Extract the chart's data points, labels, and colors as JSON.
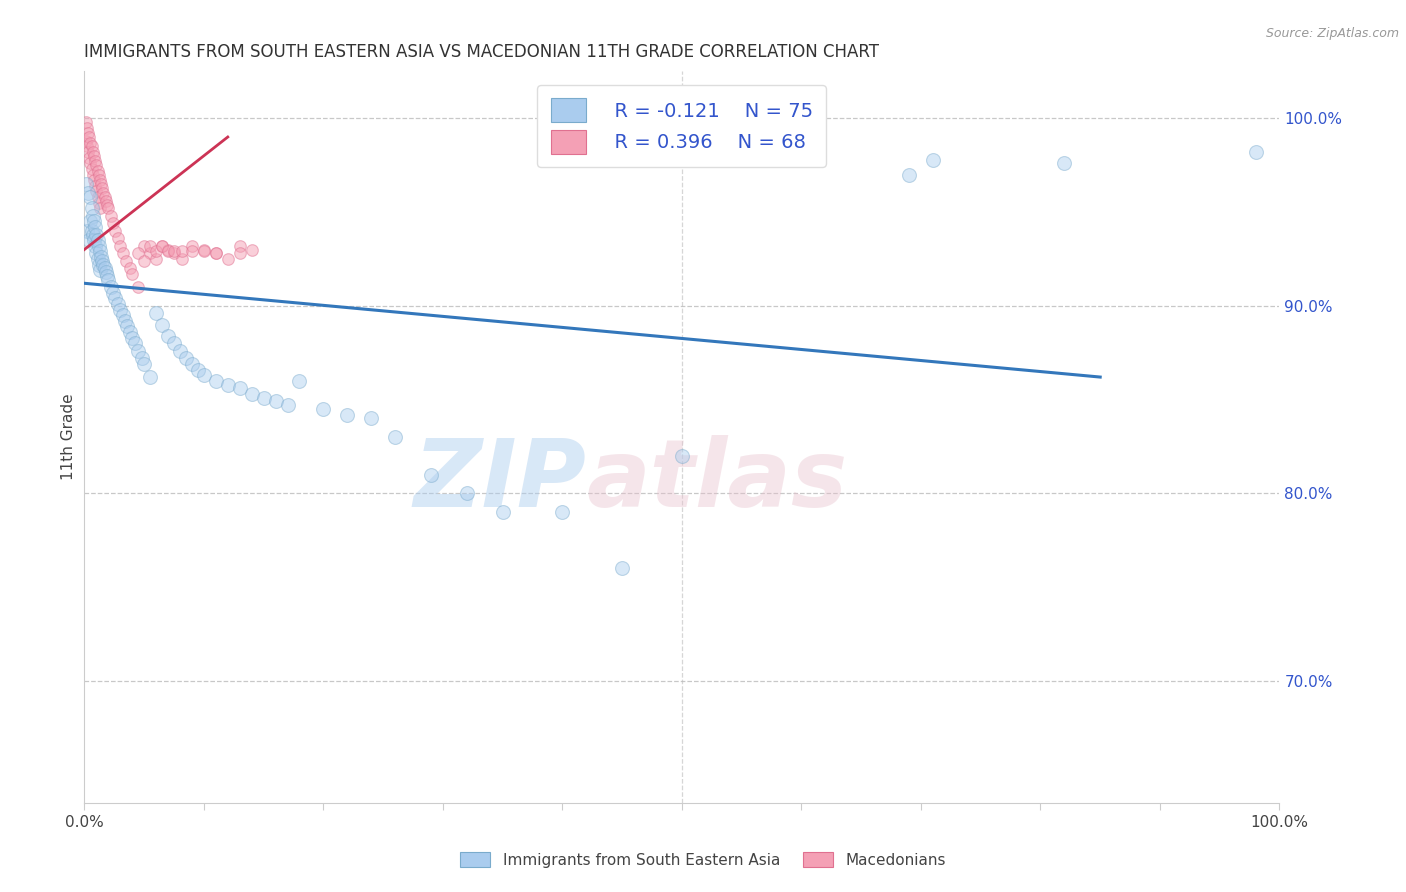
{
  "title": "IMMIGRANTS FROM SOUTH EASTERN ASIA VS MACEDONIAN 11TH GRADE CORRELATION CHART",
  "source": "Source: ZipAtlas.com",
  "ylabel": "11th Grade",
  "xmin": 0.0,
  "xmax": 1.0,
  "ymin": 0.635,
  "ymax": 1.025,
  "right_yticks": [
    0.7,
    0.8,
    0.9,
    1.0
  ],
  "right_ytick_labels": [
    "70.0%",
    "80.0%",
    "90.0%",
    "100.0%"
  ],
  "legend_r1": "R = -0.121",
  "legend_n1": "N = 75",
  "legend_r2": "R = 0.396",
  "legend_n2": "N = 68",
  "blue_color": "#aaccee",
  "blue_edge_color": "#7aabcc",
  "pink_color": "#f4a0b5",
  "pink_edge_color": "#e07090",
  "blue_line_color": "#3377bb",
  "pink_line_color": "#cc3355",
  "grid_color": "#bbbbbb",
  "title_color": "#333333",
  "right_axis_color": "#3355cc",
  "source_color": "#999999",
  "blue_scatter_x": [
    0.001,
    0.002,
    0.003,
    0.004,
    0.005,
    0.005,
    0.006,
    0.006,
    0.007,
    0.007,
    0.008,
    0.008,
    0.009,
    0.009,
    0.01,
    0.01,
    0.011,
    0.011,
    0.012,
    0.012,
    0.013,
    0.013,
    0.014,
    0.015,
    0.016,
    0.017,
    0.018,
    0.019,
    0.02,
    0.022,
    0.024,
    0.026,
    0.028,
    0.03,
    0.032,
    0.034,
    0.036,
    0.038,
    0.04,
    0.042,
    0.045,
    0.048,
    0.05,
    0.055,
    0.06,
    0.065,
    0.07,
    0.075,
    0.08,
    0.085,
    0.09,
    0.095,
    0.1,
    0.11,
    0.12,
    0.13,
    0.14,
    0.15,
    0.16,
    0.17,
    0.18,
    0.2,
    0.22,
    0.24,
    0.26,
    0.29,
    0.32,
    0.35,
    0.4,
    0.45,
    0.5,
    0.69,
    0.71,
    0.82,
    0.98
  ],
  "blue_scatter_y": [
    0.965,
    0.94,
    0.96,
    0.935,
    0.958,
    0.945,
    0.952,
    0.94,
    0.948,
    0.938,
    0.945,
    0.935,
    0.942,
    0.932,
    0.938,
    0.928,
    0.935,
    0.925,
    0.932,
    0.922,
    0.929,
    0.919,
    0.926,
    0.924,
    0.922,
    0.92,
    0.918,
    0.916,
    0.914,
    0.91,
    0.907,
    0.904,
    0.901,
    0.898,
    0.895,
    0.892,
    0.889,
    0.886,
    0.883,
    0.88,
    0.876,
    0.872,
    0.869,
    0.862,
    0.896,
    0.89,
    0.884,
    0.88,
    0.876,
    0.872,
    0.869,
    0.866,
    0.863,
    0.86,
    0.858,
    0.856,
    0.853,
    0.851,
    0.849,
    0.847,
    0.86,
    0.845,
    0.842,
    0.84,
    0.83,
    0.81,
    0.8,
    0.79,
    0.79,
    0.76,
    0.82,
    0.97,
    0.978,
    0.976,
    0.982
  ],
  "pink_scatter_x": [
    0.001,
    0.001,
    0.002,
    0.002,
    0.003,
    0.003,
    0.004,
    0.004,
    0.005,
    0.005,
    0.006,
    0.006,
    0.007,
    0.007,
    0.008,
    0.008,
    0.009,
    0.009,
    0.01,
    0.01,
    0.011,
    0.011,
    0.012,
    0.012,
    0.013,
    0.013,
    0.014,
    0.015,
    0.016,
    0.017,
    0.018,
    0.019,
    0.02,
    0.022,
    0.024,
    0.026,
    0.028,
    0.03,
    0.032,
    0.035,
    0.038,
    0.04,
    0.045,
    0.05,
    0.055,
    0.06,
    0.065,
    0.07,
    0.075,
    0.082,
    0.09,
    0.1,
    0.11,
    0.12,
    0.13,
    0.14,
    0.045,
    0.05,
    0.055,
    0.06,
    0.065,
    0.07,
    0.075,
    0.082,
    0.09,
    0.1,
    0.11,
    0.13
  ],
  "pink_scatter_y": [
    0.998,
    0.988,
    0.995,
    0.985,
    0.992,
    0.982,
    0.99,
    0.979,
    0.987,
    0.976,
    0.985,
    0.973,
    0.982,
    0.97,
    0.98,
    0.967,
    0.977,
    0.964,
    0.975,
    0.961,
    0.972,
    0.958,
    0.97,
    0.955,
    0.967,
    0.952,
    0.965,
    0.963,
    0.96,
    0.958,
    0.956,
    0.954,
    0.952,
    0.948,
    0.944,
    0.94,
    0.936,
    0.932,
    0.928,
    0.924,
    0.92,
    0.917,
    0.91,
    0.932,
    0.928,
    0.925,
    0.932,
    0.93,
    0.928,
    0.925,
    0.932,
    0.93,
    0.928,
    0.925,
    0.932,
    0.93,
    0.928,
    0.924,
    0.932,
    0.929,
    0.932,
    0.929,
    0.929,
    0.929,
    0.929,
    0.929,
    0.928,
    0.928
  ],
  "blue_line_x0": 0.0,
  "blue_line_x1": 0.85,
  "blue_line_y0": 0.912,
  "blue_line_y1": 0.862,
  "pink_line_x0": 0.0,
  "pink_line_x1": 0.12,
  "pink_line_y0": 0.93,
  "pink_line_y1": 0.99,
  "marker_size_blue": 100,
  "marker_size_pink": 70,
  "marker_alpha_blue": 0.45,
  "marker_alpha_pink": 0.5,
  "figure_bg": "#ffffff",
  "legend_fontsize": 14,
  "title_fontsize": 12,
  "axis_label_fontsize": 11,
  "tick_fontsize": 11
}
